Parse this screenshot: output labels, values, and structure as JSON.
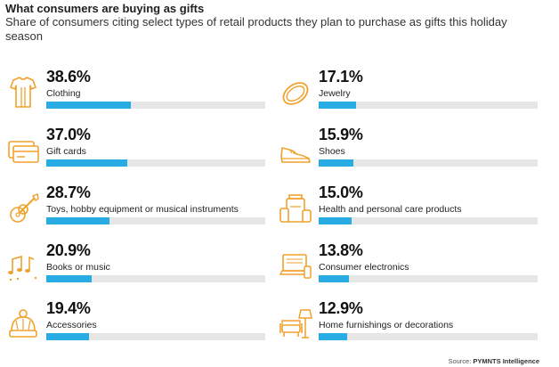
{
  "title": "What consumers are buying as gifts",
  "subtitle": "Share of consumers citing select types of retail products they plan to purchase as gifts this holiday season",
  "source_prefix": "Source:",
  "source_name": "PYMNTS Intelligence",
  "colors": {
    "bar": "#29ace3",
    "track": "#e6e6e6",
    "icon": "#f0a12b"
  },
  "chart_data": {
    "type": "bar",
    "title": "What consumers are buying as gifts",
    "subtitle": "Share of consumers citing select types of retail products they plan to purchase as gifts this holiday season",
    "unit": "%",
    "xlim": [
      0,
      100
    ],
    "categories": [
      "Clothing",
      "Gift cards",
      "Toys, hobby equipment or musical instruments",
      "Books or music",
      "Accessories",
      "Jewelry",
      "Shoes",
      "Health and personal care products",
      "Consumer electronics",
      "Home furnishings or decorations"
    ],
    "values": [
      38.6,
      37.0,
      28.7,
      20.9,
      19.4,
      17.1,
      15.9,
      15.0,
      13.8,
      12.9
    ],
    "value_labels": [
      "38.6%",
      "37.0%",
      "28.7%",
      "20.9%",
      "19.4%",
      "17.1%",
      "15.9%",
      "15.0%",
      "13.8%",
      "12.9%"
    ],
    "icons": [
      "clothing-icon",
      "gift-card-icon",
      "guitar-icon",
      "music-notes-icon",
      "beanie-icon",
      "ring-icon",
      "shoe-icon",
      "bottles-icon",
      "laptop-icon",
      "furniture-icon"
    ]
  }
}
